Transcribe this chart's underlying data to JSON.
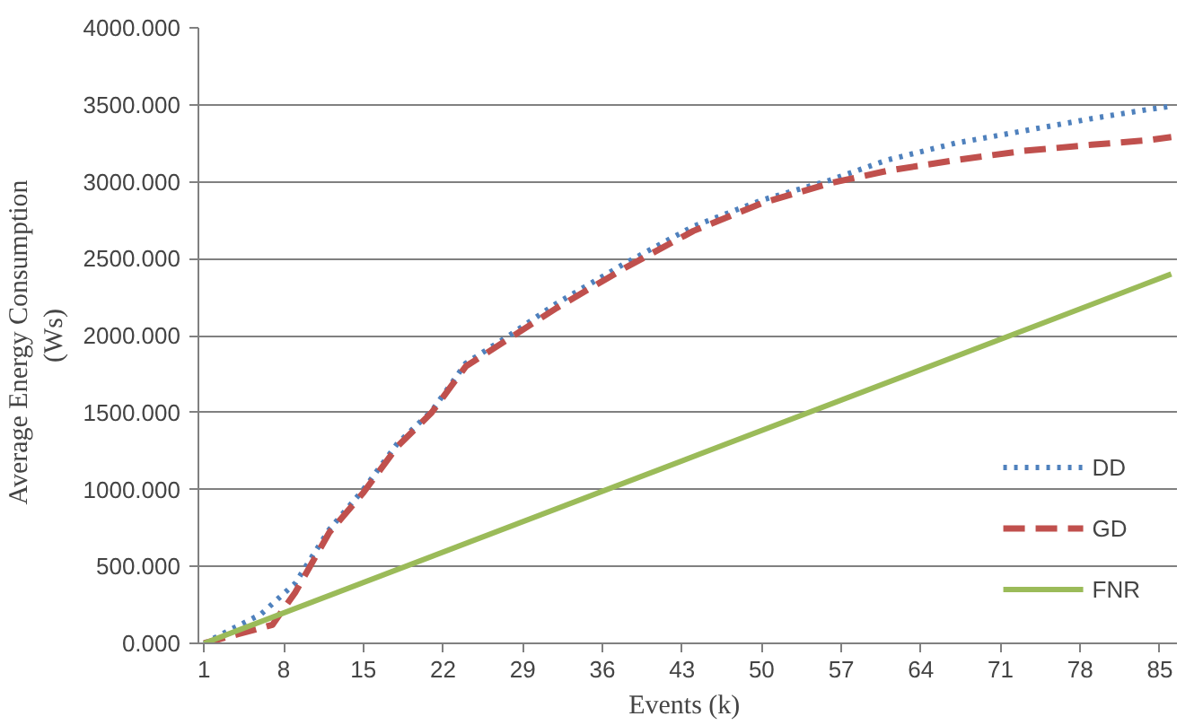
{
  "chart_data": {
    "type": "line",
    "xlabel": "Events  (k)",
    "ylabel": "Average  Energy  Consumption\n(Ws)",
    "xlim": [
      0.5,
      86.5
    ],
    "xticks": [
      1,
      8,
      15,
      22,
      29,
      36,
      43,
      50,
      57,
      64,
      71,
      78,
      85
    ],
    "ylim": [
      0,
      4000
    ],
    "yticks": [
      {
        "value": 0,
        "label": "0.000"
      },
      {
        "value": 500,
        "label": "500.000"
      },
      {
        "value": 1000,
        "label": "1000.000"
      },
      {
        "value": 1500,
        "label": "1500.000"
      },
      {
        "value": 2000,
        "label": "2000.000"
      },
      {
        "value": 2500,
        "label": "2500.000"
      },
      {
        "value": 3000,
        "label": "3000.000"
      },
      {
        "value": 3500,
        "label": "3500.000"
      },
      {
        "value": 4000,
        "label": "4000.000"
      }
    ],
    "grid": "y",
    "legend": "bottom right",
    "series": [
      {
        "name": "DD",
        "color": "#4f81bd",
        "line_style": "dotted",
        "x": [
          1,
          6,
          9,
          12,
          15,
          18,
          21,
          24,
          28,
          32,
          38,
          44,
          50,
          56,
          61,
          67,
          73,
          79,
          84,
          86
        ],
        "values": [
          0,
          190,
          390,
          740,
          1000,
          1300,
          1510,
          1820,
          2010,
          2210,
          2470,
          2710,
          2880,
          3010,
          3140,
          3250,
          3330,
          3410,
          3470,
          3490
        ]
      },
      {
        "name": "GD",
        "color": "#c0504d",
        "line_style": "dashed",
        "x": [
          1,
          4,
          7,
          9,
          12,
          15,
          18,
          21,
          24,
          28,
          32,
          38,
          44,
          50,
          56,
          61,
          67,
          73,
          79,
          84,
          86
        ],
        "values": [
          0,
          60,
          120,
          330,
          720,
          980,
          1280,
          1500,
          1800,
          1990,
          2180,
          2440,
          2680,
          2860,
          2990,
          3070,
          3140,
          3200,
          3240,
          3270,
          3290
        ]
      },
      {
        "name": "FNR",
        "color": "#9bbb59",
        "line_style": "solid",
        "x": [
          1,
          86
        ],
        "values": [
          0,
          2400
        ]
      }
    ]
  }
}
